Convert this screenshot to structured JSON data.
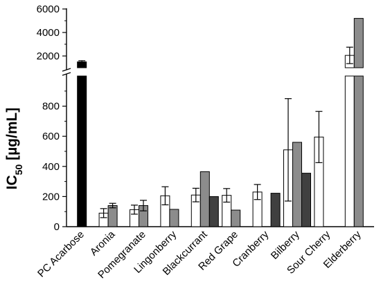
{
  "chart_data": {
    "type": "bar",
    "title": "",
    "xlabel": "",
    "ylabel": {
      "main": "IC",
      "subscript": "50",
      "rest": " [µg/mL]"
    },
    "axis_break": {
      "lower_range": [
        0,
        1000
      ],
      "upper_range": [
        1000,
        6000
      ]
    },
    "y_ticks_lower": [
      "0",
      "200",
      "400",
      "600",
      "800"
    ],
    "y_ticks_upper": [
      "2000",
      "4000",
      "6000"
    ],
    "categories": [
      "PC Acarbose",
      "Aronia",
      "Pomegranate",
      "Lingonberry",
      "Blackcurrant",
      "Red Grape",
      "Cranberry",
      "Bilberry",
      "Sour Cherry",
      "Elderberry"
    ],
    "series": [
      {
        "color": "#ffffff",
        "values": [
          null,
          90,
          113,
          205,
          210,
          208,
          230,
          510,
          595,
          2050
        ],
        "errors": [
          null,
          30,
          30,
          60,
          45,
          45,
          50,
          340,
          170,
          700
        ]
      },
      {
        "color": "#8c8c8c",
        "values": [
          null,
          140,
          140,
          115,
          365,
          110,
          null,
          560,
          null,
          5200
        ],
        "errors": [
          null,
          15,
          35,
          null,
          null,
          null,
          null,
          null,
          null,
          null
        ]
      },
      {
        "color": "#404040",
        "values": [
          null,
          null,
          null,
          null,
          200,
          null,
          222,
          355,
          null,
          null
        ],
        "errors": [
          null,
          null,
          null,
          null,
          null,
          null,
          null,
          null,
          null,
          null
        ]
      }
    ],
    "control": {
      "category": "PC Acarbose",
      "color": "#000000",
      "value": 1500,
      "error": 100
    },
    "grid": false,
    "legend": "none"
  }
}
